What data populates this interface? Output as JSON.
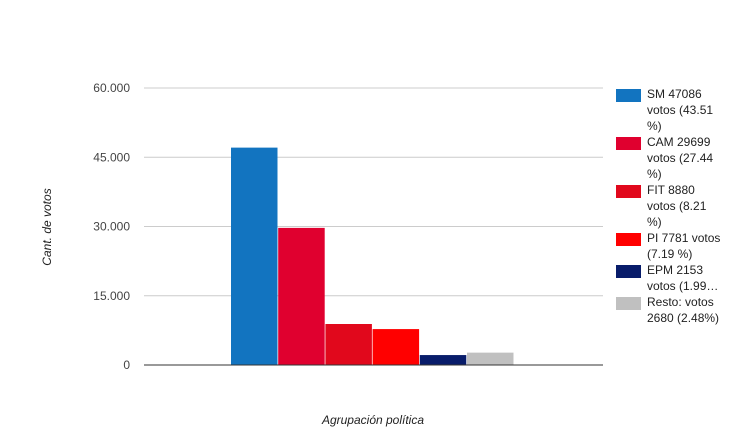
{
  "chart_data": {
    "type": "bar",
    "title": "",
    "xlabel": "Agrupación política",
    "ylabel": "Cant. de votos",
    "ylim": [
      0,
      60000
    ],
    "yticks": [
      {
        "value": 0,
        "label": "0"
      },
      {
        "value": 15000,
        "label": "15.000"
      },
      {
        "value": 30000,
        "label": "30.000"
      },
      {
        "value": 45000,
        "label": "45.000"
      },
      {
        "value": 60000,
        "label": "60.000"
      }
    ],
    "grid": true,
    "legend_position": "right",
    "series": [
      {
        "name": "SM",
        "value": 47086,
        "color": "#1274c0",
        "legend_lines": [
          "SM 47086",
          "votos (43.51",
          "%)"
        ]
      },
      {
        "name": "CAM",
        "value": 29699,
        "color": "#e0002f",
        "legend_lines": [
          "CAM 29699",
          "votos (27.44",
          "%)"
        ]
      },
      {
        "name": "FIT",
        "value": 8880,
        "color": "#e1081c",
        "legend_lines": [
          "FIT 8880",
          "votos (8.21",
          "%)"
        ]
      },
      {
        "name": "PI",
        "value": 7781,
        "color": "#ff0000",
        "legend_lines": [
          "PI 7781 votos",
          "(7.19 %)"
        ]
      },
      {
        "name": "EPM",
        "value": 2153,
        "color": "#081c6a",
        "legend_lines": [
          "EPM 2153",
          "votos (1.99…"
        ]
      },
      {
        "name": "Resto:",
        "value": 2680,
        "color": "#c0c0c0",
        "legend_lines": [
          "Resto: votos",
          "2680 (2.48%)"
        ]
      }
    ]
  }
}
